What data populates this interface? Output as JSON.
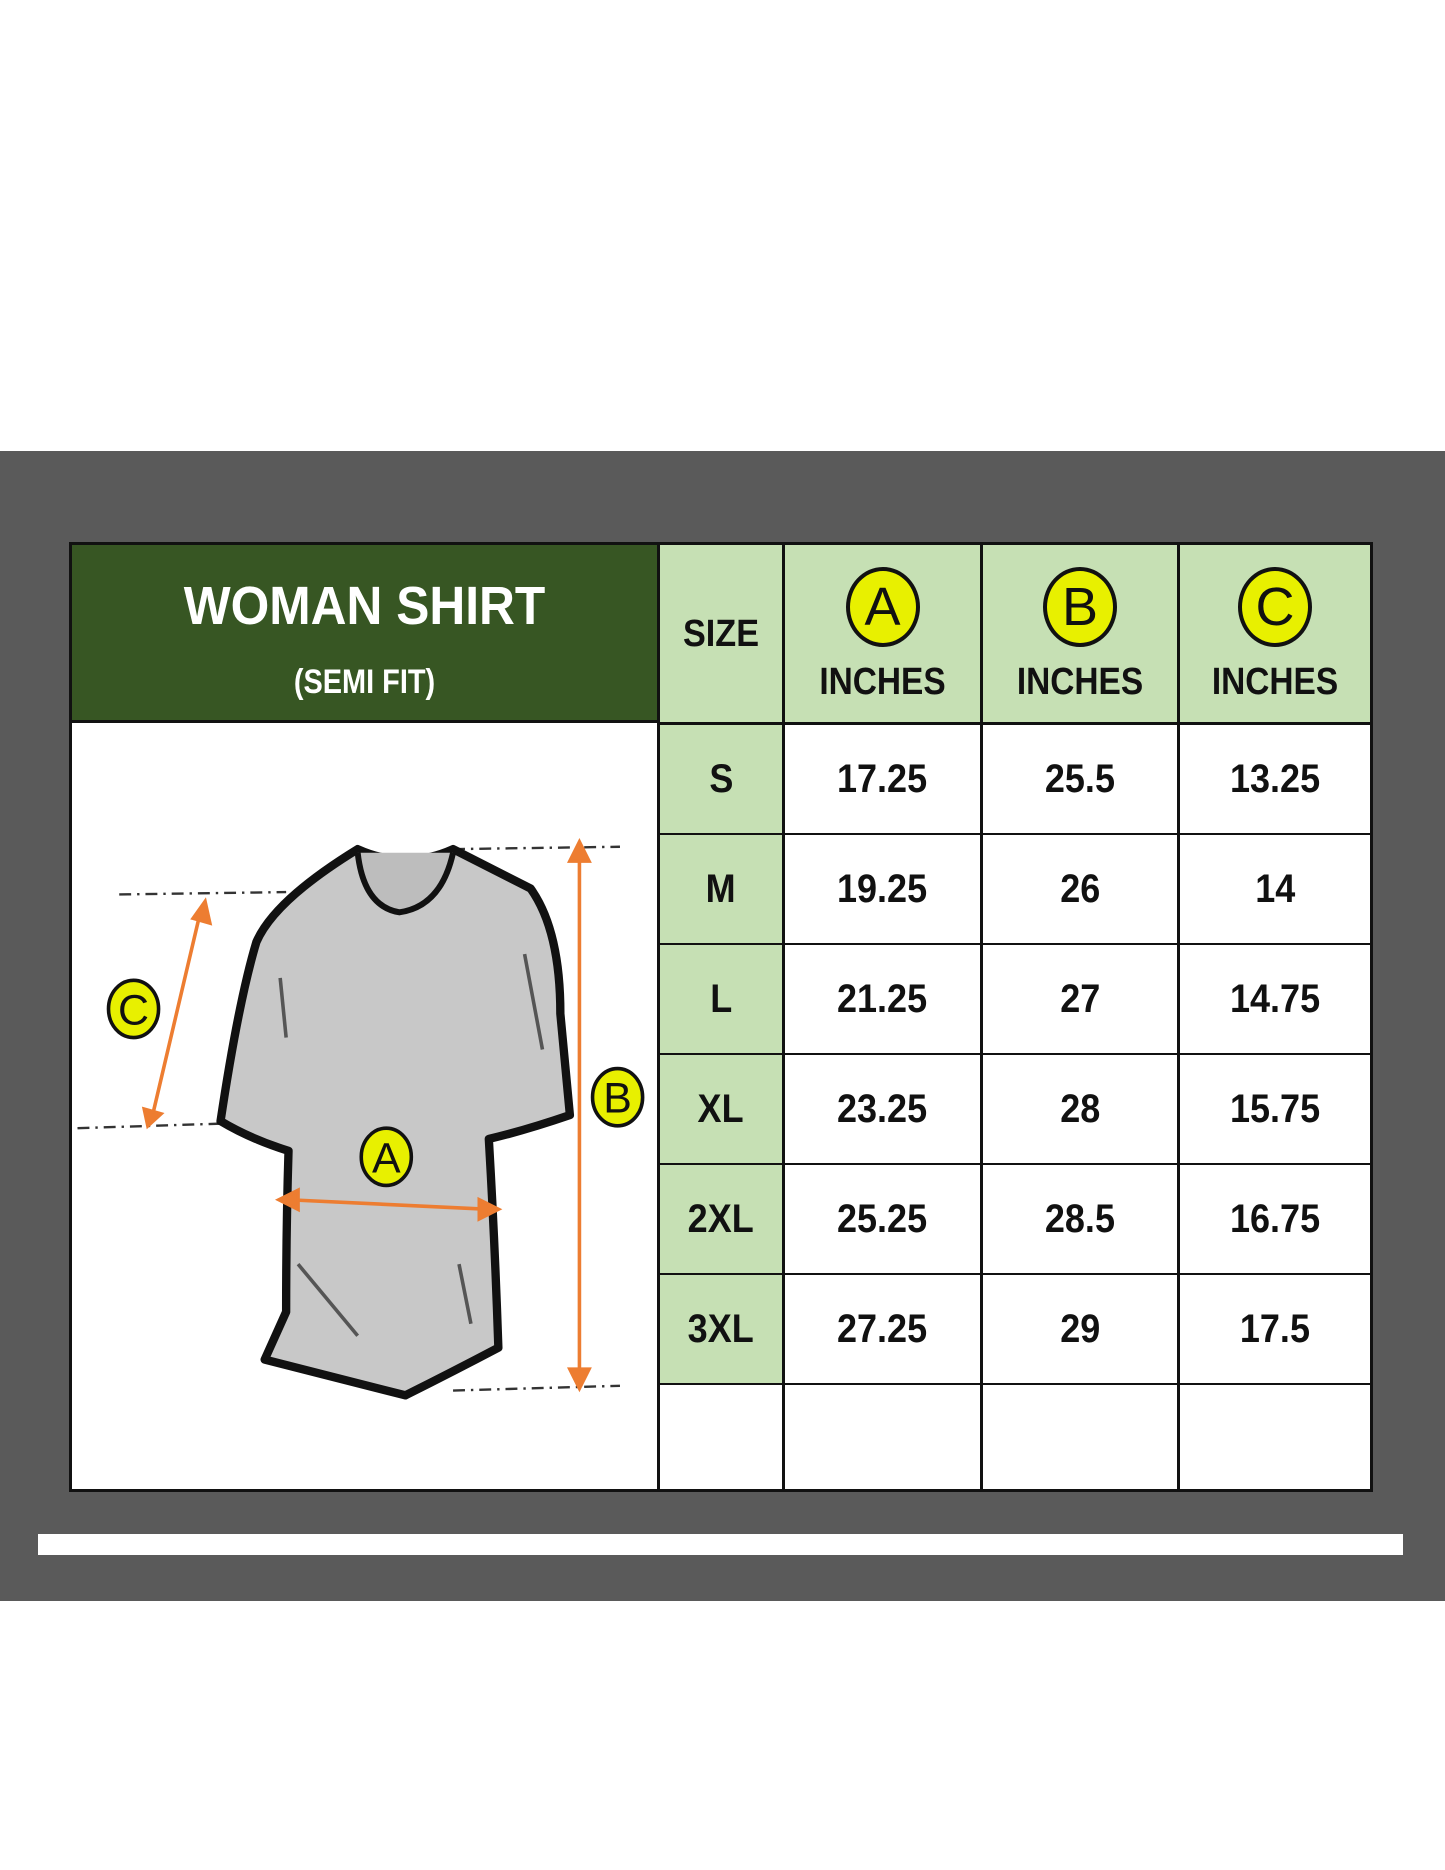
{
  "title": "WOMAN SHIRT",
  "subtitle": "(SEMI FIT)",
  "table": {
    "size_header": "SIZE",
    "columns": [
      {
        "badge": "A",
        "unit": "INCHES"
      },
      {
        "badge": "B",
        "unit": "INCHES"
      },
      {
        "badge": "C",
        "unit": "INCHES"
      }
    ],
    "rows": [
      {
        "size": "S",
        "a": "17.25",
        "b": "25.5",
        "c": "13.25"
      },
      {
        "size": "M",
        "a": "19.25",
        "b": "26",
        "c": "14"
      },
      {
        "size": "L",
        "a": "21.25",
        "b": "27",
        "c": "14.75"
      },
      {
        "size": "XL",
        "a": "23.25",
        "b": "28",
        "c": "15.75"
      },
      {
        "size": "2XL",
        "a": "25.25",
        "b": "28.5",
        "c": "16.75"
      },
      {
        "size": "3XL",
        "a": "27.25",
        "b": "29",
        "c": "17.5"
      }
    ]
  },
  "illustration": {
    "labels": [
      "A",
      "B",
      "C"
    ]
  },
  "colors": {
    "header_green": "#375623",
    "light_green": "#c6e0b4",
    "badge_yellow": "#e8f000",
    "arrow_orange": "#ed7d31",
    "background_gray": "#5a5a5a"
  }
}
